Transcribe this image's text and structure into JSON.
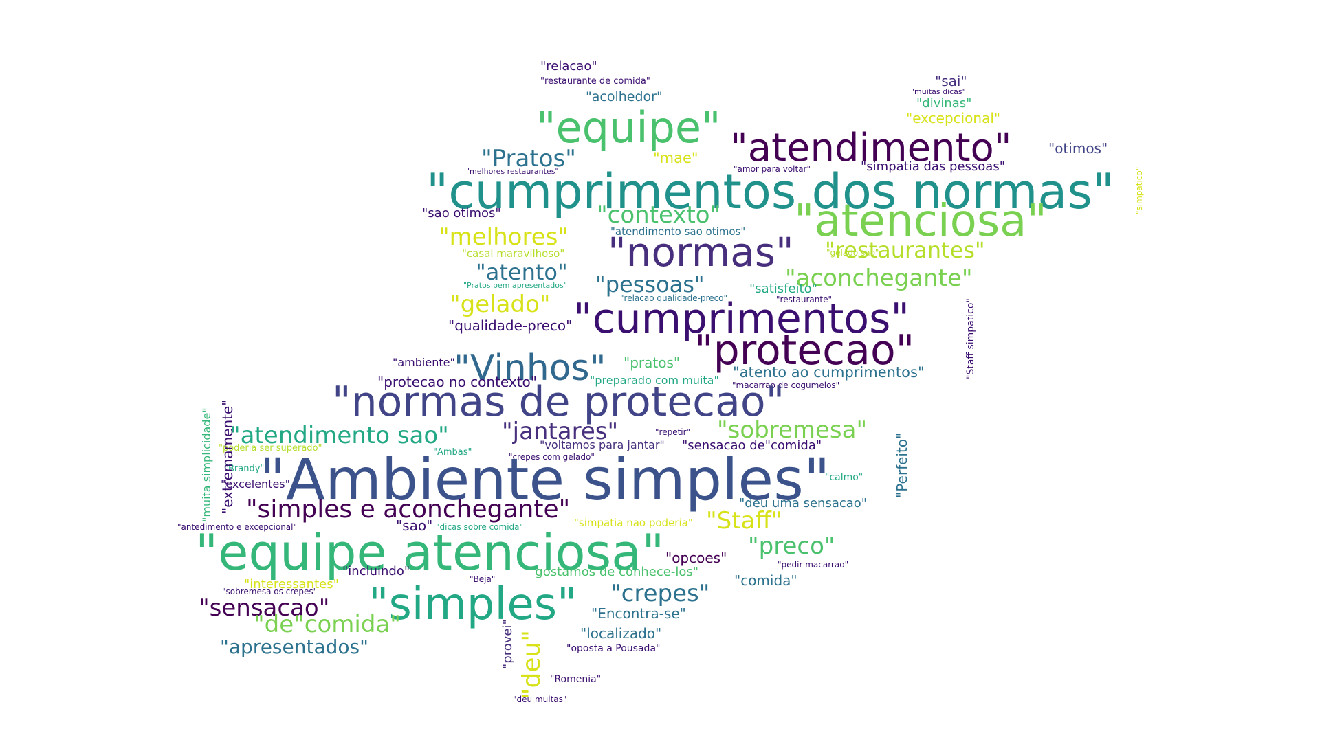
{
  "wordcloud": {
    "words": [
      {
        "text": "\"relacao\"",
        "color": "#3b0f70"
      },
      {
        "text": "\"restaurante de comida\"",
        "color": "#3b0f70"
      },
      {
        "text": "\"acolhedor\"",
        "color": "#2c728e"
      },
      {
        "text": "\"sai\"",
        "color": "#472f7d"
      },
      {
        "text": "\"muitas dicas\"",
        "color": "#3b0f70"
      },
      {
        "text": "\"divinas\"",
        "color": "#35b779"
      },
      {
        "text": "\"excepcional\"",
        "color": "#d8e219"
      },
      {
        "text": "\"equipe\"",
        "color": "#4ac16d"
      },
      {
        "text": "\"atendimento\"",
        "color": "#440154"
      },
      {
        "text": "\"otimos\"",
        "color": "#414487"
      },
      {
        "text": "\"Pratos\"",
        "color": "#2c728e"
      },
      {
        "text": "\"mae\"",
        "color": "#d8e219"
      },
      {
        "text": "\"melhores restaurantes\"",
        "color": "#3b0f70"
      },
      {
        "text": "\"amor para voltar\"",
        "color": "#3b0f70"
      },
      {
        "text": "\"simpatia das pessoas\"",
        "color": "#3b0f70"
      },
      {
        "text": "\"cumprimentos dos normas\"",
        "color": "#21918c"
      },
      {
        "text": "\"sao otimos\"",
        "color": "#3b0f70"
      },
      {
        "text": "\"contexto\"",
        "color": "#4ac16d"
      },
      {
        "text": "\"atenciosa\"",
        "color": "#7ad151"
      },
      {
        "text": "\"melhores\"",
        "color": "#d8e219"
      },
      {
        "text": "\"atendimento sao otimos\"",
        "color": "#2c728e"
      },
      {
        "text": "\"normas\"",
        "color": "#472f7d"
      },
      {
        "text": "\"restaurantes\"",
        "color": "#b5de2b"
      },
      {
        "text": "\"casal maravilhoso\"",
        "color": "#b5de2b"
      },
      {
        "text": "\"gelado sao\"",
        "color": "#b5de2b"
      },
      {
        "text": "\"atento\"",
        "color": "#2c728e"
      },
      {
        "text": "\"pessoas\"",
        "color": "#2c728e"
      },
      {
        "text": "\"aconchegante\"",
        "color": "#7ad151"
      },
      {
        "text": "\"Pratos bem apresentados\"",
        "color": "#22a884"
      },
      {
        "text": "\"satisfeito\"",
        "color": "#22a884"
      },
      {
        "text": "\"relacao qualidade-preco\"",
        "color": "#2c728e"
      },
      {
        "text": "\"restaurante\"",
        "color": "#3b0f70"
      },
      {
        "text": "\"gelado\"",
        "color": "#d8e219"
      },
      {
        "text": "\"cumprimentos\"",
        "color": "#3b0f70"
      },
      {
        "text": "\"qualidade-preco\"",
        "color": "#3b0f70"
      },
      {
        "text": "\"protecao\"",
        "color": "#440154"
      },
      {
        "text": "\"Vinhos\"",
        "color": "#31688e"
      },
      {
        "text": "\"ambiente\"",
        "color": "#3b0f70"
      },
      {
        "text": "\"pratos\"",
        "color": "#4ac16d"
      },
      {
        "text": "\"atento ao cumprimentos\"",
        "color": "#2c728e"
      },
      {
        "text": "\"protecao no contexto\"",
        "color": "#3b0f70"
      },
      {
        "text": "\"preparado com muita\"",
        "color": "#22a884"
      },
      {
        "text": "\"macarrao de cogumelos\"",
        "color": "#3b0f70"
      },
      {
        "text": "\"normas de protecao\"",
        "color": "#414487"
      },
      {
        "text": "\"atendimento sao\"",
        "color": "#22a884"
      },
      {
        "text": "\"jantares\"",
        "color": "#472f7d"
      },
      {
        "text": "\"repetir\"",
        "color": "#3b0f70"
      },
      {
        "text": "\"sobremesa\"",
        "color": "#7ad151"
      },
      {
        "text": "\"poderia ser superado\"",
        "color": "#b5de2b"
      },
      {
        "text": "\"voltamos para jantar\"",
        "color": "#472f7d"
      },
      {
        "text": "\"sensacao de\"comida\"",
        "color": "#3b0f70"
      },
      {
        "text": "\"Ambas\"",
        "color": "#22a884"
      },
      {
        "text": "\"crepes com gelado\"",
        "color": "#3b0f70"
      },
      {
        "text": "\"Brandy\"",
        "color": "#22a884"
      },
      {
        "text": "\"Ambiente simples\"",
        "color": "#3b528b"
      },
      {
        "text": "\"calmo\"",
        "color": "#22a884"
      },
      {
        "text": "\"excelentes\"",
        "color": "#3b0f70"
      },
      {
        "text": "\"simples e aconchegante\"",
        "color": "#440154"
      },
      {
        "text": "\"deu uma sensacao\"",
        "color": "#2c728e"
      },
      {
        "text": "\"Staff\"",
        "color": "#d8e219"
      },
      {
        "text": "\"antedimento e excepcional\"",
        "color": "#3b0f70"
      },
      {
        "text": "\"sao\"",
        "color": "#3b0f70"
      },
      {
        "text": "\"dicas sobre comida\"",
        "color": "#22a884"
      },
      {
        "text": "\"simpatia nao poderia\"",
        "color": "#d8e219"
      },
      {
        "text": "\"equipe atenciosa\"",
        "color": "#35b779"
      },
      {
        "text": "\"preco\"",
        "color": "#4ac16d"
      },
      {
        "text": "\"opcoes\"",
        "color": "#440154"
      },
      {
        "text": "\"pedir macarrao\"",
        "color": "#3b0f70"
      },
      {
        "text": "\"incluindo\"",
        "color": "#3b0f70"
      },
      {
        "text": "\"gostamos de conhece-los\"",
        "color": "#4ac16d"
      },
      {
        "text": "\"comida\"",
        "color": "#2c728e"
      },
      {
        "text": "\"interessantes\"",
        "color": "#d8e219"
      },
      {
        "text": "\"sobremesa os crepes\"",
        "color": "#3b0f70"
      },
      {
        "text": "\"Beja\"",
        "color": "#3b0f70"
      },
      {
        "text": "\"simples\"",
        "color": "#22a884"
      },
      {
        "text": "\"crepes\"",
        "color": "#2c728e"
      },
      {
        "text": "\"sensacao\"",
        "color": "#440154"
      },
      {
        "text": "\"Encontra-se\"",
        "color": "#2c728e"
      },
      {
        "text": "\"de\"comida\"",
        "color": "#7ad151"
      },
      {
        "text": "\"localizado\"",
        "color": "#2c728e"
      },
      {
        "text": "\"apresentados\"",
        "color": "#2c728e"
      },
      {
        "text": "\"oposta a Pousada\"",
        "color": "#3b0f70"
      },
      {
        "text": "\"Romenia\"",
        "color": "#3b0f70"
      },
      {
        "text": "\"deu muitas\"",
        "color": "#3b0f70"
      },
      {
        "text": "\"deu\"",
        "color": "#d8e219"
      },
      {
        "text": "\"provei\"",
        "color": "#472f7d"
      },
      {
        "text": "\"muita simplicidade\"",
        "color": "#35b779"
      },
      {
        "text": "\"extremamente\"",
        "color": "#3b0f70"
      },
      {
        "text": "\"Perfeito\"",
        "color": "#2c728e"
      },
      {
        "text": "\"Staff simpatico\"",
        "color": "#3b0f70"
      },
      {
        "text": "\"simpatico\"",
        "color": "#d8e219"
      }
    ]
  }
}
